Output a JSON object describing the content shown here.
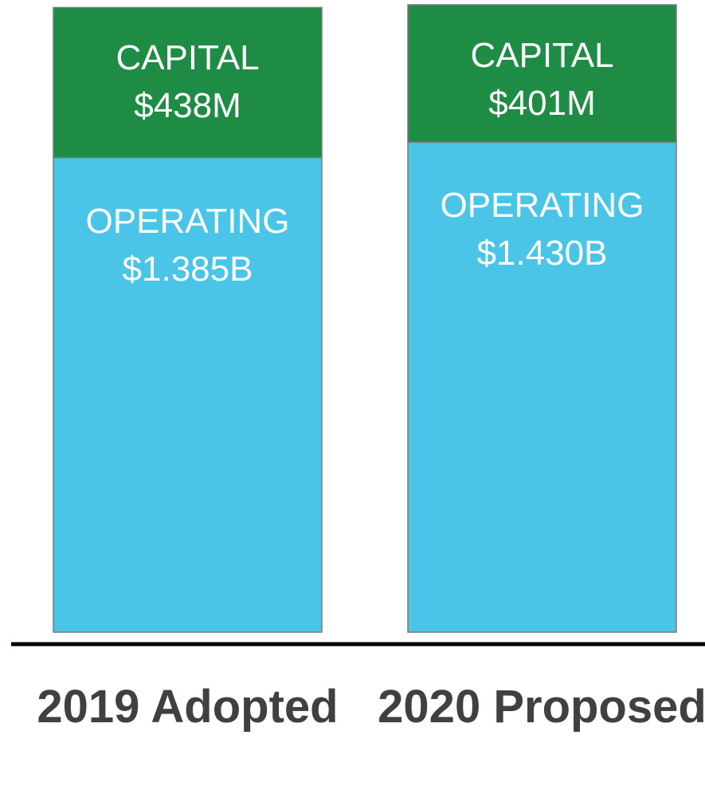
{
  "chart_data": {
    "type": "stacked_bar",
    "categories": [
      "2019 Adopted",
      "2020 Proposed"
    ],
    "series": [
      {
        "name": "OPERATING",
        "color": "#4ac5e8",
        "values": [
          1385,
          1430
        ],
        "value_labels": [
          "$1.385B",
          "$1.430B"
        ]
      },
      {
        "name": "CAPITAL",
        "color": "#1e8c45",
        "values": [
          438,
          401
        ],
        "value_labels": [
          "$438M",
          "$401M"
        ]
      }
    ]
  }
}
